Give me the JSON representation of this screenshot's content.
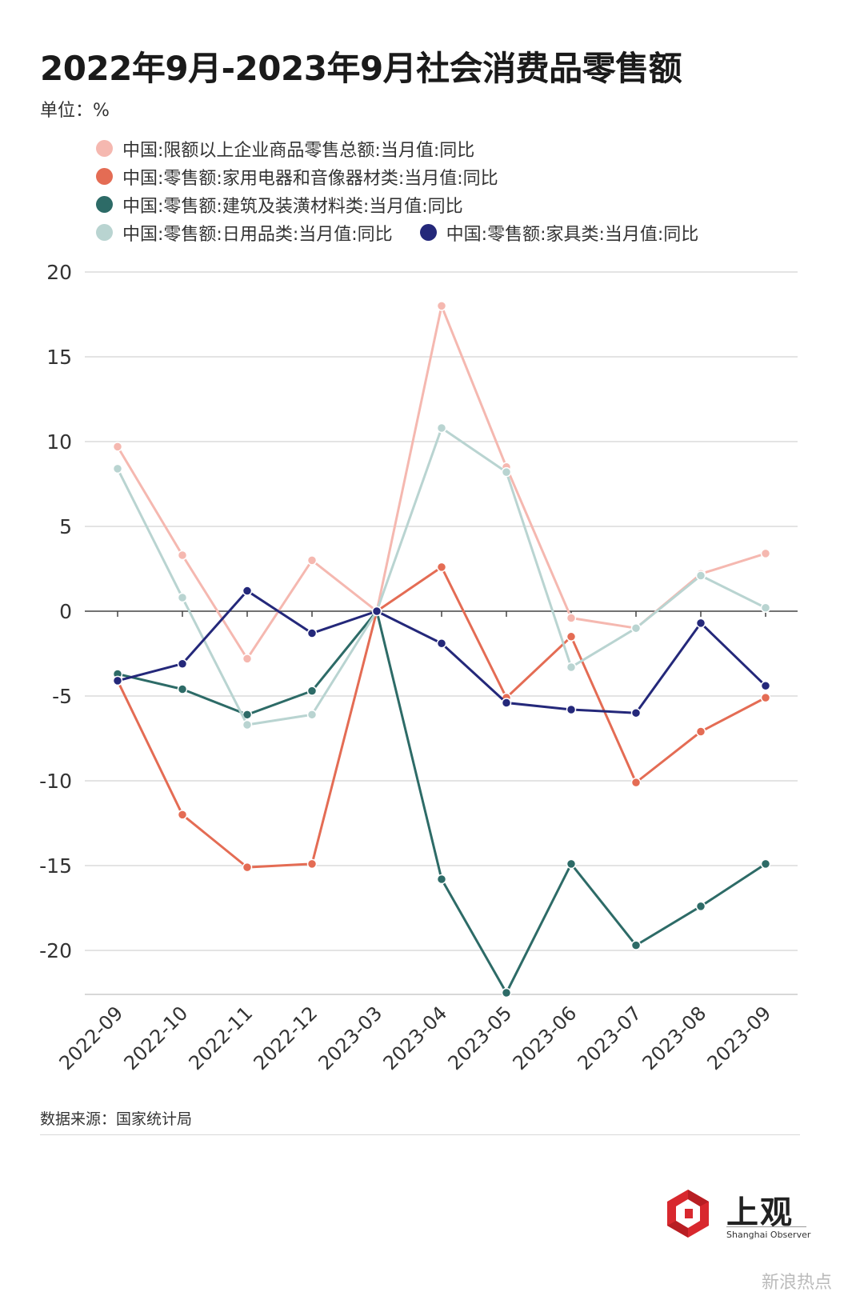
{
  "title": "2022年9月-2023年9月社会消费品零售额",
  "unit_label": "单位：%",
  "source": "数据来源：国家统计局",
  "logo": {
    "cn": "上观",
    "en": "Shanghai Observer"
  },
  "watermark": "新浪热点",
  "chart_data": {
    "type": "line",
    "title": "2022年9月-2023年9月社会消费品零售额",
    "xlabel": "",
    "ylabel": "单位：%",
    "categories": [
      "2022-09",
      "2022-10",
      "2022-11",
      "2022-12",
      "2023-03",
      "2023-04",
      "2023-05",
      "2023-06",
      "2023-07",
      "2023-08",
      "2023-09"
    ],
    "ylim": [
      -22.5,
      20
    ],
    "yticks": [
      20,
      15,
      10,
      5,
      0,
      -5,
      -10,
      -15,
      -20
    ],
    "grid": true,
    "legend_position": "top",
    "series": [
      {
        "name": "中国:限额以上企业商品零售总额:当月值:同比",
        "color": "#f5b8b0",
        "values": [
          9.7,
          3.3,
          -2.8,
          3.0,
          0,
          18.0,
          8.5,
          -0.4,
          -1.0,
          2.2,
          3.4
        ]
      },
      {
        "name": "中国:零售额:家用电器和音像器材类:当月值:同比",
        "color": "#e46c54",
        "values": [
          -4.1,
          -12.0,
          -15.1,
          -14.9,
          0,
          2.6,
          -5.1,
          -1.5,
          -10.1,
          -7.1,
          -5.1
        ]
      },
      {
        "name": "中国:零售额:建筑及装潢材料类:当月值:同比",
        "color": "#2d6b67",
        "values": [
          -3.7,
          -4.6,
          -6.1,
          -4.7,
          0,
          -15.8,
          -22.5,
          -14.9,
          -19.7,
          -17.4,
          -14.9
        ]
      },
      {
        "name": "中国:零售额:日用品类:当月值:同比",
        "color": "#b9d4d1",
        "values": [
          8.4,
          0.8,
          -6.7,
          -6.1,
          0,
          10.8,
          8.2,
          -3.3,
          -1.0,
          2.1,
          0.2
        ]
      },
      {
        "name": "中国:零售额:家具类:当月值:同比",
        "color": "#24287a",
        "values": [
          -4.1,
          -3.1,
          1.2,
          -1.3,
          0,
          -1.9,
          -5.4,
          -5.8,
          -6.0,
          -0.7,
          -4.4
        ]
      }
    ]
  }
}
